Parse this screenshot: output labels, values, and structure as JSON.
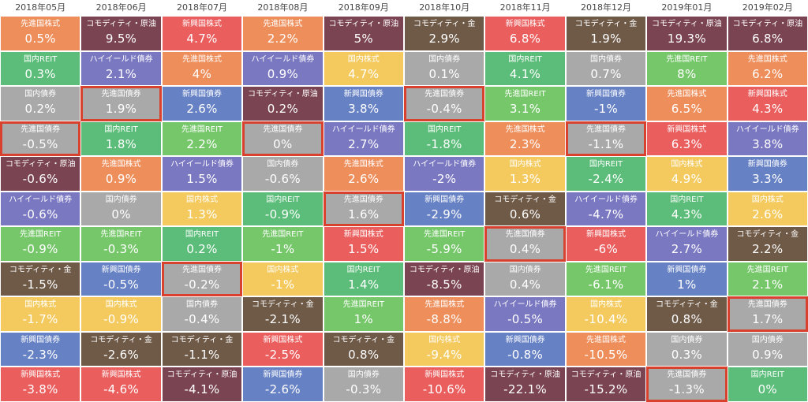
{
  "chart_data": {
    "type": "table",
    "title": "",
    "months": [
      "2018年05月",
      "2018年06月",
      "2018年07月",
      "2018年08月",
      "2018年09月",
      "2018年10月",
      "2018年11月",
      "2018年12月",
      "2019年01月",
      "2019年02月"
    ],
    "asset_colors": {
      "先進国株式": "#ee8e5b",
      "コモディティ・原油": "#7a4452",
      "新興国株式": "#ea5e5e",
      "国内REIT": "#5bbd79",
      "ハイイールド債券": "#7b78c2",
      "国内債券": "#a9a9a9",
      "先進国REIT": "#76c76a",
      "コモディティ・金": "#6f5a48",
      "国内株式": "#f4ca5e",
      "先進国債券": "#a9a9a9",
      "新興国債券": "#6782c4"
    },
    "columns": [
      {
        "month": "2018年05月",
        "cells": [
          {
            "label": "先進国株式",
            "value": "0.5%"
          },
          {
            "label": "国内REIT",
            "value": "0.3%"
          },
          {
            "label": "国内債券",
            "value": "0.2%"
          },
          {
            "label": "先進国債券",
            "value": "-0.5%"
          },
          {
            "label": "コモディティ・原油",
            "value": "-0.6%"
          },
          {
            "label": "ハイイールド債券",
            "value": "-0.6%"
          },
          {
            "label": "先進国REIT",
            "value": "-0.9%"
          },
          {
            "label": "コモディティ・金",
            "value": "-1.5%"
          },
          {
            "label": "国内株式",
            "value": "-1.7%"
          },
          {
            "label": "新興国債券",
            "value": "-2.3%"
          },
          {
            "label": "新興国株式",
            "value": "-3.8%"
          }
        ]
      },
      {
        "month": "2018年06月",
        "cells": [
          {
            "label": "コモディティ・原油",
            "value": "9.5%"
          },
          {
            "label": "ハイイールド債券",
            "value": "2.1%"
          },
          {
            "label": "先進国債券",
            "value": "1.9%"
          },
          {
            "label": "国内REIT",
            "value": "1.8%"
          },
          {
            "label": "先進国株式",
            "value": "0.9%"
          },
          {
            "label": "国内債券",
            "value": "0%"
          },
          {
            "label": "先進国REIT",
            "value": "-0.3%"
          },
          {
            "label": "新興国債券",
            "value": "-0.5%"
          },
          {
            "label": "国内株式",
            "value": "-0.9%"
          },
          {
            "label": "コモディティ・金",
            "value": "-2.6%"
          },
          {
            "label": "新興国株式",
            "value": "-4.6%"
          }
        ]
      },
      {
        "month": "2018年07月",
        "cells": [
          {
            "label": "新興国株式",
            "value": "4.7%"
          },
          {
            "label": "先進国株式",
            "value": "4%"
          },
          {
            "label": "新興国債券",
            "value": "2.6%"
          },
          {
            "label": "先進国REIT",
            "value": "2.2%"
          },
          {
            "label": "ハイイールド債券",
            "value": "1.5%"
          },
          {
            "label": "国内株式",
            "value": "1.3%"
          },
          {
            "label": "国内REIT",
            "value": "0.2%"
          },
          {
            "label": "先進国債券",
            "value": "-0.2%"
          },
          {
            "label": "国内債券",
            "value": "-0.4%"
          },
          {
            "label": "コモディティ・金",
            "value": "-1.1%"
          },
          {
            "label": "コモディティ・原油",
            "value": "-4.1%"
          }
        ]
      },
      {
        "month": "2018年08月",
        "cells": [
          {
            "label": "先進国株式",
            "value": "2.2%"
          },
          {
            "label": "ハイイールド債券",
            "value": "0.9%"
          },
          {
            "label": "コモディティ・原油",
            "value": "0.2%"
          },
          {
            "label": "先進国債券",
            "value": "0%"
          },
          {
            "label": "国内債券",
            "value": "-0.6%"
          },
          {
            "label": "国内REIT",
            "value": "-0.9%"
          },
          {
            "label": "先進国REIT",
            "value": "-1%"
          },
          {
            "label": "国内株式",
            "value": "-1%"
          },
          {
            "label": "コモディティ・金",
            "value": "-2.1%"
          },
          {
            "label": "新興国株式",
            "value": "-2.5%"
          },
          {
            "label": "新興国債券",
            "value": "-2.6%"
          }
        ]
      },
      {
        "month": "2018年09月",
        "cells": [
          {
            "label": "コモディティ・原油",
            "value": "5%"
          },
          {
            "label": "国内株式",
            "value": "4.7%"
          },
          {
            "label": "新興国債券",
            "value": "3.8%"
          },
          {
            "label": "ハイイールド債券",
            "value": "2.7%"
          },
          {
            "label": "先進国株式",
            "value": "2.6%"
          },
          {
            "label": "先進国債券",
            "value": "1.6%"
          },
          {
            "label": "新興国株式",
            "value": "1.5%"
          },
          {
            "label": "国内REIT",
            "value": "1.4%"
          },
          {
            "label": "先進国REIT",
            "value": "1%"
          },
          {
            "label": "コモディティ・金",
            "value": "0.8%"
          },
          {
            "label": "国内債券",
            "value": "-0.3%"
          }
        ]
      },
      {
        "month": "2018年10月",
        "cells": [
          {
            "label": "コモディティ・金",
            "value": "2.9%"
          },
          {
            "label": "国内債券",
            "value": "0.1%"
          },
          {
            "label": "先進国債券",
            "value": "-0.4%"
          },
          {
            "label": "国内REIT",
            "value": "-1.8%"
          },
          {
            "label": "ハイイールド債券",
            "value": "-2%"
          },
          {
            "label": "新興国債券",
            "value": "-2.9%"
          },
          {
            "label": "先進国REIT",
            "value": "-5.9%"
          },
          {
            "label": "コモディティ・原油",
            "value": "-8.5%"
          },
          {
            "label": "先進国株式",
            "value": "-8.8%"
          },
          {
            "label": "国内株式",
            "value": "-9.4%"
          },
          {
            "label": "新興国株式",
            "value": "-10.6%"
          }
        ]
      },
      {
        "month": "2018年11月",
        "cells": [
          {
            "label": "新興国株式",
            "value": "6.8%"
          },
          {
            "label": "国内REIT",
            "value": "4.1%"
          },
          {
            "label": "先進国REIT",
            "value": "3.1%"
          },
          {
            "label": "先進国株式",
            "value": "2.3%"
          },
          {
            "label": "国内株式",
            "value": "1.3%"
          },
          {
            "label": "コモディティ・金",
            "value": "0.6%"
          },
          {
            "label": "先進国債券",
            "value": "0.4%"
          },
          {
            "label": "国内債券",
            "value": "0.4%"
          },
          {
            "label": "ハイイールド債券",
            "value": "-0.5%"
          },
          {
            "label": "新興国債券",
            "value": "-0.8%"
          },
          {
            "label": "コモディティ・原油",
            "value": "-22.1%"
          }
        ]
      },
      {
        "month": "2018年12月",
        "cells": [
          {
            "label": "コモディティ・金",
            "value": "1.9%"
          },
          {
            "label": "国内債券",
            "value": "0.7%"
          },
          {
            "label": "新興国債券",
            "value": "-1%"
          },
          {
            "label": "先進国債券",
            "value": "-1.1%"
          },
          {
            "label": "国内REIT",
            "value": "-2.4%"
          },
          {
            "label": "ハイイールド債券",
            "value": "-4.7%"
          },
          {
            "label": "新興国株式",
            "value": "-6%"
          },
          {
            "label": "先進国REIT",
            "value": "-6.1%"
          },
          {
            "label": "国内株式",
            "value": "-10.4%"
          },
          {
            "label": "先進国株式",
            "value": "-10.5%"
          },
          {
            "label": "コモディティ・原油",
            "value": "-15.2%"
          }
        ]
      },
      {
        "month": "2019年01月",
        "cells": [
          {
            "label": "コモディティ・原油",
            "value": "19.3%"
          },
          {
            "label": "先進国REIT",
            "value": "8%"
          },
          {
            "label": "先進国株式",
            "value": "6.5%"
          },
          {
            "label": "新興国株式",
            "value": "6.3%"
          },
          {
            "label": "国内株式",
            "value": "4.9%"
          },
          {
            "label": "国内REIT",
            "value": "4.3%"
          },
          {
            "label": "ハイイールド債券",
            "value": "2.7%"
          },
          {
            "label": "新興国債券",
            "value": "1%"
          },
          {
            "label": "コモディティ・金",
            "value": "0.8%"
          },
          {
            "label": "国内債券",
            "value": "0.3%"
          },
          {
            "label": "先進国債券",
            "value": "-1.3%"
          }
        ]
      },
      {
        "month": "2019年02月",
        "cells": [
          {
            "label": "コモディティ・原油",
            "value": "6.8%"
          },
          {
            "label": "先進国株式",
            "value": "6.2%"
          },
          {
            "label": "新興国株式",
            "value": "4.3%"
          },
          {
            "label": "ハイイールド債券",
            "value": "3.8%"
          },
          {
            "label": "新興国債券",
            "value": "3.3%"
          },
          {
            "label": "国内株式",
            "value": "2.6%"
          },
          {
            "label": "コモディティ・金",
            "value": "2.2%"
          },
          {
            "label": "先進国REIT",
            "value": "2.1%"
          },
          {
            "label": "先進国債券",
            "value": "1.7%"
          },
          {
            "label": "国内債券",
            "value": "0.9%"
          },
          {
            "label": "国内REIT",
            "value": "0%"
          }
        ]
      }
    ]
  }
}
